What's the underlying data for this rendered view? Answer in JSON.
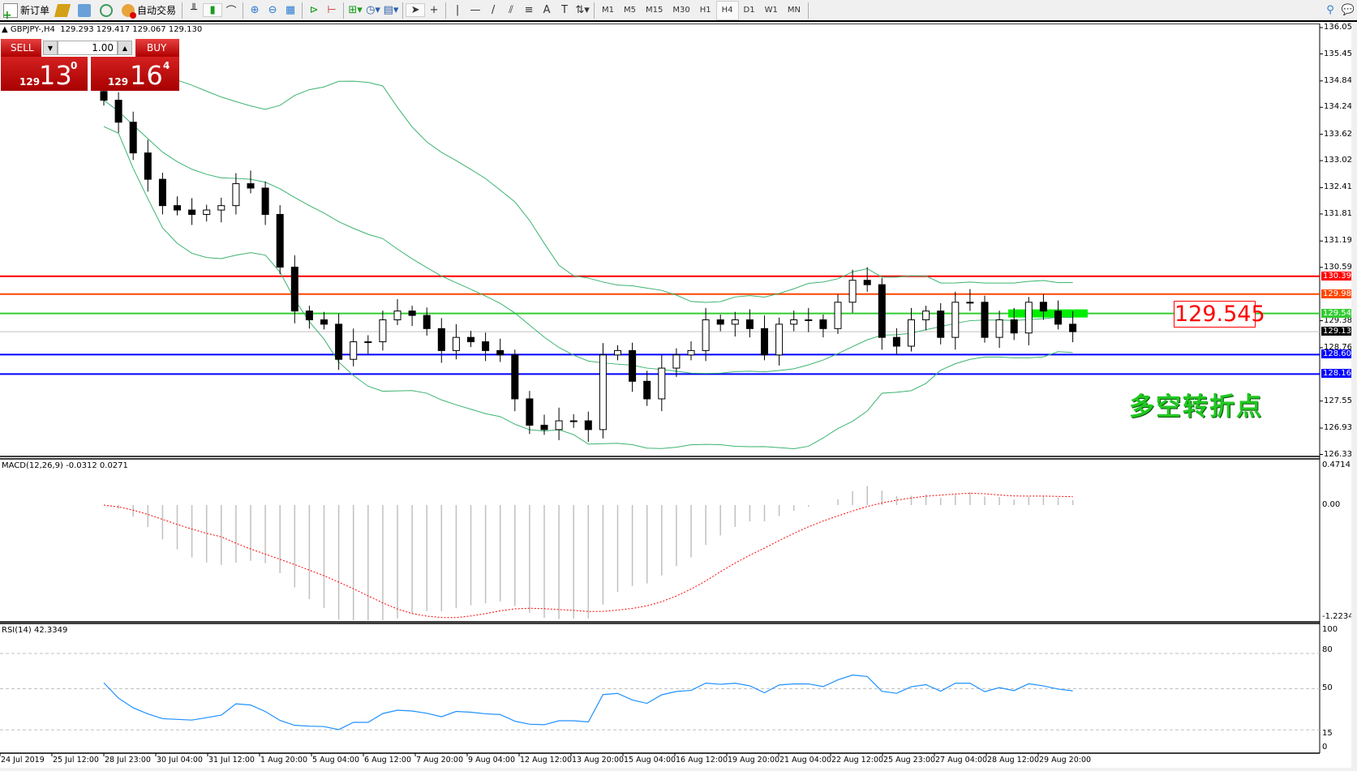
{
  "toolbar": {
    "new_order": "新订单",
    "auto_trading": "自动交易",
    "timeframes": [
      "M1",
      "M5",
      "M15",
      "M30",
      "H1",
      "H4",
      "D1",
      "W1",
      "MN"
    ],
    "active_timeframe": "H4"
  },
  "chart_header": {
    "symbol": "GBPJPY-,H4",
    "ohlc": "129.293 129.417 129.067 129.130"
  },
  "trade_panel": {
    "sell_label": "SELL",
    "buy_label": "BUY",
    "lot": "1.00",
    "sell_big": "129",
    "sell_pips": "13",
    "sell_frac": "0",
    "buy_big": "129",
    "buy_pips": "16",
    "buy_frac": "4"
  },
  "price_axis": [
    "136.055",
    "135.455",
    "134.840",
    "134.240",
    "133.625",
    "133.025",
    "132.410",
    "131.810",
    "131.195",
    "130.595",
    "129.380",
    "128.765",
    "127.550",
    "126.935",
    "126.335"
  ],
  "levels": [
    {
      "value": "130.391",
      "color": "#ff0000"
    },
    {
      "value": "129.986",
      "color": "#ff4500"
    },
    {
      "value": "129.545",
      "color": "#32cd32"
    },
    {
      "value": "129.130",
      "color": "#000000"
    },
    {
      "value": "128.607",
      "color": "#0000ff"
    },
    {
      "value": "128.166",
      "color": "#0000ff"
    }
  ],
  "annotation_price": "129.545",
  "annotation_text": "多空转折点",
  "macd": {
    "label": "MACD(12,26,9) -0.0312 0.0271",
    "axis": [
      "0.4714",
      "0.00",
      "-1.2234"
    ]
  },
  "rsi": {
    "label": "RSI(14) 42.3349",
    "axis": [
      "100",
      "80",
      "50",
      "15",
      "0"
    ]
  },
  "time_axis": [
    "24 Jul 2019",
    "25 Jul 12:00",
    "28 Jul 23:00",
    "30 Jul 04:00",
    "31 Jul 12:00",
    "1 Aug 20:00",
    "5 Aug 04:00",
    "6 Aug 12:00",
    "7 Aug 20:00",
    "9 Aug 04:00",
    "12 Aug 12:00",
    "13 Aug 20:00",
    "15 Aug 04:00",
    "16 Aug 12:00",
    "19 Aug 20:00",
    "21 Aug 04:00",
    "22 Aug 12:00",
    "25 Aug 23:00",
    "27 Aug 04:00",
    "28 Aug 12:00",
    "29 Aug 20:00"
  ],
  "chart_data": {
    "type": "candlestick",
    "closes": [
      134.4,
      133.9,
      133.2,
      132.6,
      132.0,
      131.9,
      131.8,
      131.9,
      132.0,
      132.5,
      132.4,
      131.8,
      130.6,
      129.6,
      129.4,
      129.3,
      128.5,
      128.9,
      128.9,
      129.4,
      129.6,
      129.5,
      129.2,
      128.7,
      129.0,
      128.9,
      128.7,
      128.6,
      127.6,
      127.0,
      126.9,
      127.1,
      127.1,
      126.9,
      128.6,
      128.7,
      128.0,
      127.6,
      128.3,
      128.6,
      128.7,
      129.4,
      129.3,
      129.4,
      129.2,
      128.6,
      129.3,
      129.4,
      129.4,
      129.2,
      129.8,
      130.3,
      130.2,
      129.0,
      128.8,
      129.4,
      129.6,
      129.0,
      129.8,
      129.8,
      129.0,
      129.4,
      129.1,
      129.8,
      129.6,
      129.3,
      129.13
    ],
    "ylim": [
      126.335,
      136.055
    ],
    "colors": {
      "bollinger": "#3cb371",
      "macd_signal": "#ff0000",
      "macd_hist": "#c0c0c0",
      "rsi": "#1e90ff"
    }
  }
}
